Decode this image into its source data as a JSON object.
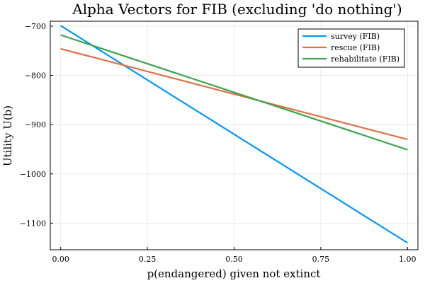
{
  "chart_data": {
    "type": "line",
    "title": "Alpha Vectors for FIB (excluding 'do nothing')",
    "xlabel": "p(endangered) given not extinct",
    "ylabel": "Utility U(b)",
    "xlim": [
      -0.03,
      1.03
    ],
    "ylim": [
      -1154,
      -690
    ],
    "xticks": [
      0.0,
      0.25,
      0.5,
      0.75,
      1.0
    ],
    "xtick_labels": [
      "0.00",
      "0.25",
      "0.50",
      "0.75",
      "1.00"
    ],
    "yticks": [
      -700,
      -800,
      -900,
      -1000,
      -1100
    ],
    "ytick_labels": [
      "−700",
      "−800",
      "−900",
      "−1000",
      "−1100"
    ],
    "grid": true,
    "legend_position": "top-right",
    "x": [
      0.0,
      1.0
    ],
    "series": [
      {
        "name": "survey (FIB)",
        "color": "#009af9",
        "values": [
          -699,
          -1140
        ]
      },
      {
        "name": "rescue (FIB)",
        "color": "#e26f46",
        "values": [
          -746,
          -930
        ]
      },
      {
        "name": "rehabilitate (FIB)",
        "color": "#3da44d",
        "values": [
          -718,
          -951
        ]
      }
    ]
  }
}
